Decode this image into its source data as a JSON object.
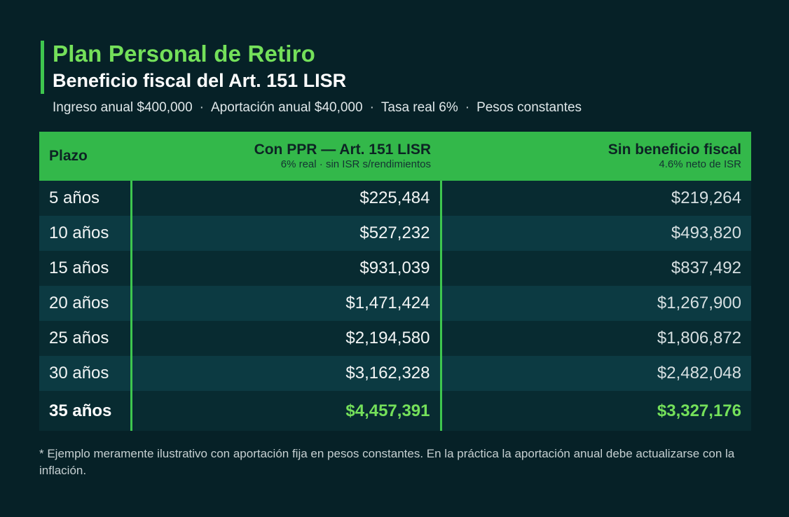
{
  "colors": {
    "accent": "#3ec64e",
    "highlight": "#74e05a",
    "background": "#062127"
  },
  "header": {
    "title": "Plan Personal de Retiro",
    "subtitle": "Beneficio fiscal del Art. 151 LISR"
  },
  "meta": {
    "items": [
      "Ingreso anual $400,000",
      "Aportación anual $40,000",
      "Tasa real 6%",
      "Pesos constantes"
    ],
    "separator": "·"
  },
  "chart_data": {
    "type": "table",
    "columns": [
      {
        "label": "Plazo",
        "sublabel": ""
      },
      {
        "label": "Con PPR — Art. 151 LISR",
        "sublabel": "6% real · sin ISR s/rendimientos"
      },
      {
        "label": "Sin beneficio fiscal",
        "sublabel": "4.6% neto de ISR"
      }
    ],
    "rows": [
      [
        "5 años",
        "$225,484",
        "$219,264"
      ],
      [
        "10 años",
        "$527,232",
        "$493,820"
      ],
      [
        "15 años",
        "$931,039",
        "$837,492"
      ],
      [
        "20 años",
        "$1,471,424",
        "$1,267,900"
      ],
      [
        "25 años",
        "$2,194,580",
        "$1,806,872"
      ],
      [
        "30 años",
        "$3,162,328",
        "$2,482,048"
      ],
      [
        "35 años",
        "$4,457,391",
        "$3,327,176"
      ]
    ]
  },
  "footnote": "* Ejemplo meramente ilustrativo con aportación fija en pesos constantes. En la práctica la aportación anual debe actualizarse con la inflación."
}
